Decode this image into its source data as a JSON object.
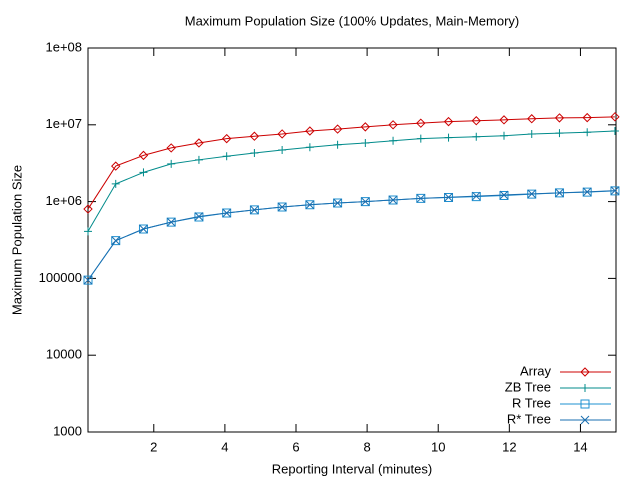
{
  "chart_data": {
    "type": "line",
    "title": "Maximum Population Size (100% Updates, Main-Memory)",
    "x_label": "Reporting Interval (minutes)",
    "y_label": "Maximum Population Size",
    "log_y": true,
    "legend": "bottom-right",
    "xlim": [
      0.15,
      15
    ],
    "xticks": [
      2,
      4,
      6,
      8,
      10,
      12,
      14
    ],
    "ylim": [
      1000,
      100000000
    ],
    "yticks": [
      1000,
      10000,
      100000,
      {
        "value": 1000000,
        "label": "1e+06"
      },
      {
        "value": 10000000,
        "label": "1e+07"
      },
      {
        "value": 100000000,
        "label": "1e+08"
      }
    ],
    "x": [
      0.15,
      0.93,
      1.71,
      2.49,
      3.27,
      4.05,
      4.83,
      5.61,
      6.39,
      7.17,
      7.95,
      8.73,
      9.51,
      10.29,
      11.07,
      11.85,
      12.63,
      13.41,
      14.19,
      14.97
    ],
    "series": [
      {
        "name": "Array",
        "color": "#cc0000",
        "marker": "diamond",
        "values": [
          800000,
          2900000,
          4000000,
          5000000,
          5800000,
          6600000,
          7100000,
          7600000,
          8300000,
          8800000,
          9400000,
          10000000,
          10500000,
          11000000,
          11300000,
          11600000,
          12000000,
          12300000,
          12400000,
          12700000
        ]
      },
      {
        "name": "ZB Tree",
        "color": "#008b8b",
        "marker": "plus",
        "values": [
          410000,
          1700000,
          2400000,
          3100000,
          3500000,
          3900000,
          4300000,
          4700000,
          5100000,
          5500000,
          5800000,
          6200000,
          6600000,
          6800000,
          7000000,
          7200000,
          7600000,
          7800000,
          8000000,
          8300000
        ]
      },
      {
        "name": "R Tree",
        "color": "#1e90d0",
        "marker": "square",
        "values": [
          95000,
          310000,
          440000,
          540000,
          630000,
          710000,
          780000,
          850000,
          910000,
          960000,
          1000000,
          1050000,
          1100000,
          1130000,
          1160000,
          1200000,
          1250000,
          1300000,
          1330000,
          1380000
        ]
      },
      {
        "name": "R* Tree",
        "color": "#1a6fb0",
        "marker": "cross",
        "values": [
          95000,
          310000,
          440000,
          540000,
          640000,
          710000,
          780000,
          850000,
          910000,
          960000,
          1000000,
          1050000,
          1100000,
          1140000,
          1180000,
          1220000,
          1260000,
          1300000,
          1340000,
          1390000
        ]
      }
    ]
  }
}
